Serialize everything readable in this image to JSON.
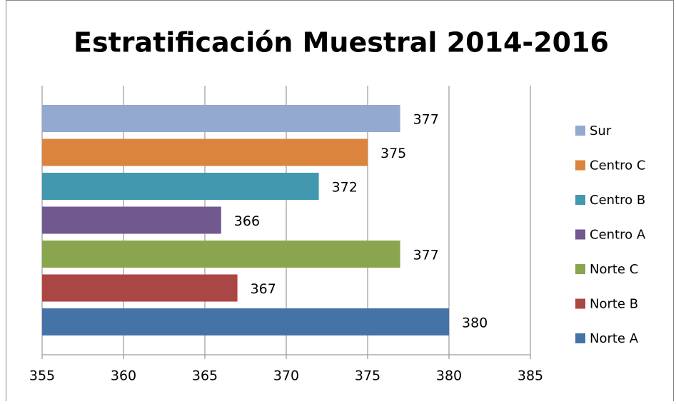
{
  "chart_data": {
    "type": "bar",
    "orientation": "horizontal",
    "title": "Estratificación Muestral 2014-2016",
    "series": [
      {
        "name": "Norte A",
        "color": "#4572A7",
        "values": [
          380
        ]
      },
      {
        "name": "Norte B",
        "color": "#AA4643",
        "values": [
          367
        ]
      },
      {
        "name": "Norte C",
        "color": "#89A54E",
        "values": [
          377
        ]
      },
      {
        "name": "Centro A",
        "color": "#71588F",
        "values": [
          366
        ]
      },
      {
        "name": "Centro B",
        "color": "#4198AF",
        "values": [
          372
        ]
      },
      {
        "name": "Centro C",
        "color": "#DB843D",
        "values": [
          375
        ]
      },
      {
        "name": "Sur",
        "color": "#93A9CF",
        "values": [
          377
        ]
      }
    ],
    "xlim": [
      355,
      385
    ],
    "xticks": [
      355,
      360,
      365,
      370,
      375,
      380,
      385
    ],
    "grid": true,
    "legend": "right"
  }
}
